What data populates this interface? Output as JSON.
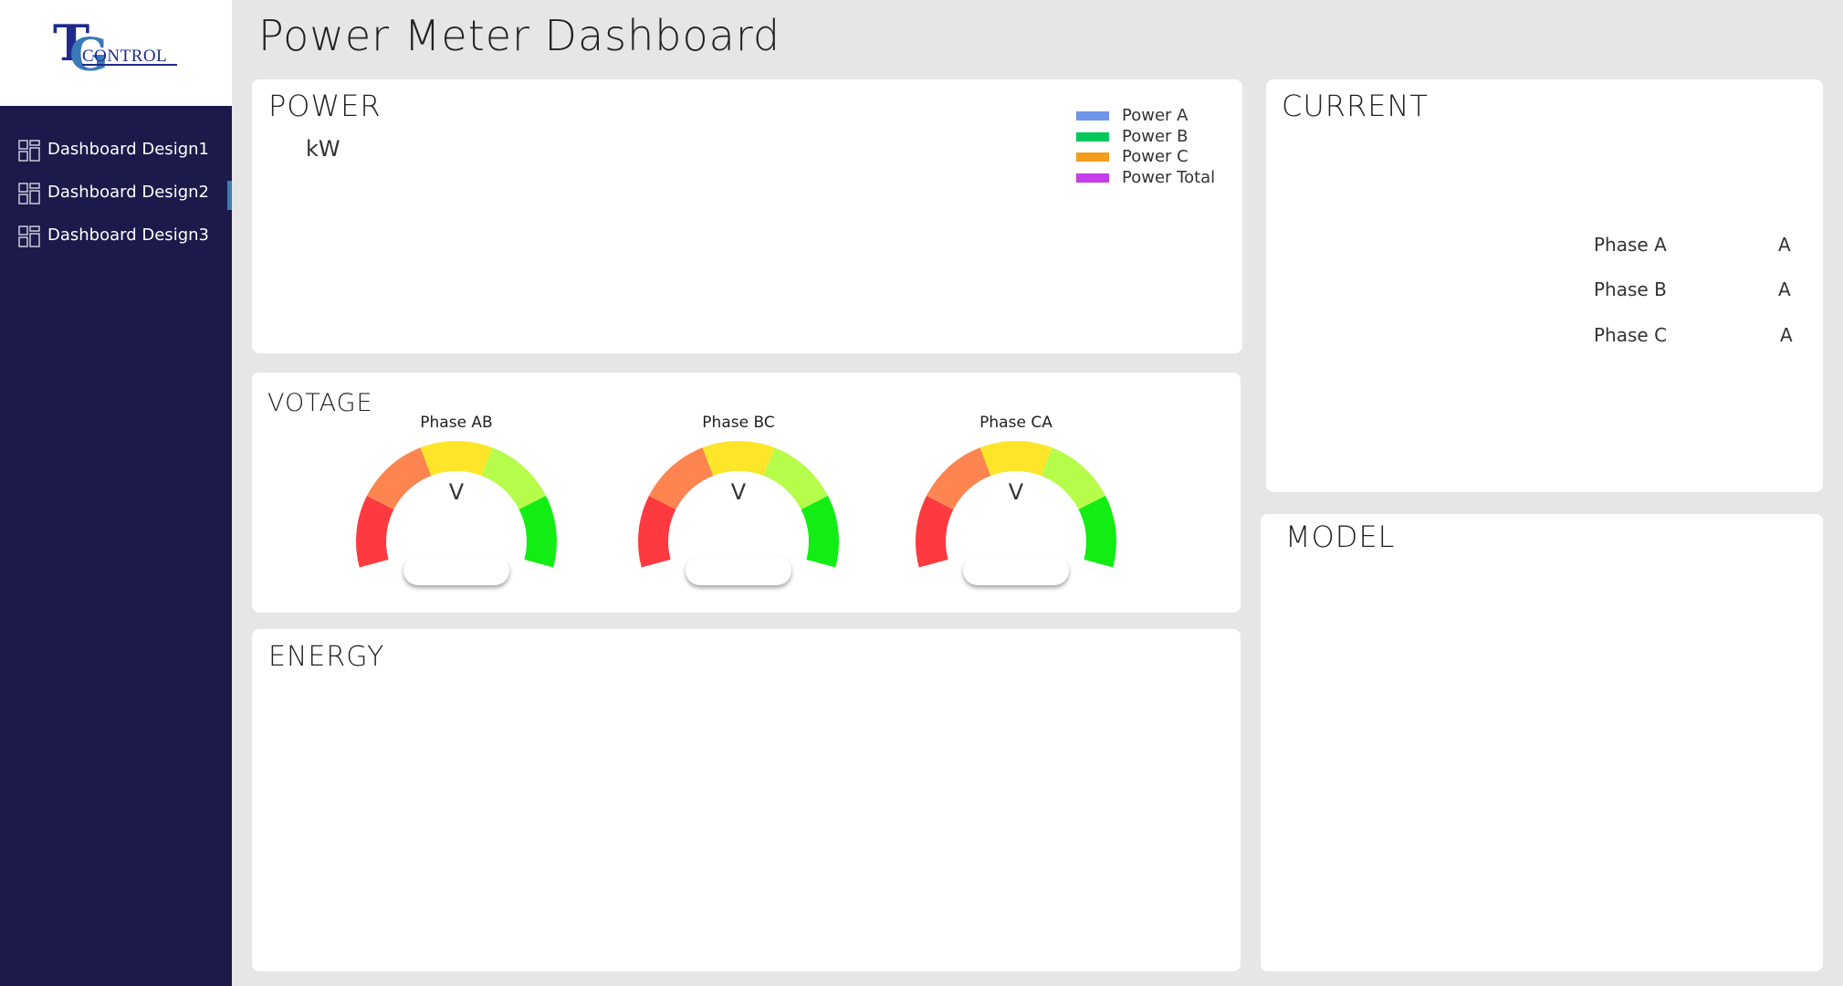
{
  "app": {
    "logo": {
      "letter_t": "T",
      "letter_g": "G",
      "word": "CONTROL"
    }
  },
  "sidebar": {
    "items": [
      {
        "label": "Dashboard Design1",
        "icon": "dashboard-grid-icon",
        "active": false
      },
      {
        "label": "Dashboard Design2",
        "icon": "dashboard-grid-icon",
        "active": true
      },
      {
        "label": "Dashboard Design3",
        "icon": "dashboard-grid-icon",
        "active": false
      }
    ]
  },
  "header": {
    "title": "Power Meter Dashboard"
  },
  "power": {
    "title": "POWER",
    "unit": "kW",
    "legend": [
      {
        "label": "Power A",
        "color": "#6e95ea"
      },
      {
        "label": "Power B",
        "color": "#00c85a"
      },
      {
        "label": "Power C",
        "color": "#f49c1c"
      },
      {
        "label": "Power Total",
        "color": "#c53ce8"
      }
    ]
  },
  "current": {
    "title": "CURRENT",
    "phases": [
      {
        "name": "Phase A",
        "unit": "A"
      },
      {
        "name": "Phase B",
        "unit": "A"
      },
      {
        "name": "Phase C",
        "unit": "A"
      }
    ]
  },
  "voltage": {
    "title": "VOTAGE",
    "gauges": [
      {
        "label": "Phase AB",
        "unit": "V"
      },
      {
        "label": "Phase BC",
        "unit": "V"
      },
      {
        "label": "Phase CA",
        "unit": "V"
      }
    ],
    "segment_colors": [
      "#fc3a3f",
      "#fe8450",
      "#fde52a",
      "#b6fc4a",
      "#12ee13"
    ]
  },
  "energy": {
    "title": "ENERGY"
  },
  "model": {
    "title": "MODEL"
  }
}
